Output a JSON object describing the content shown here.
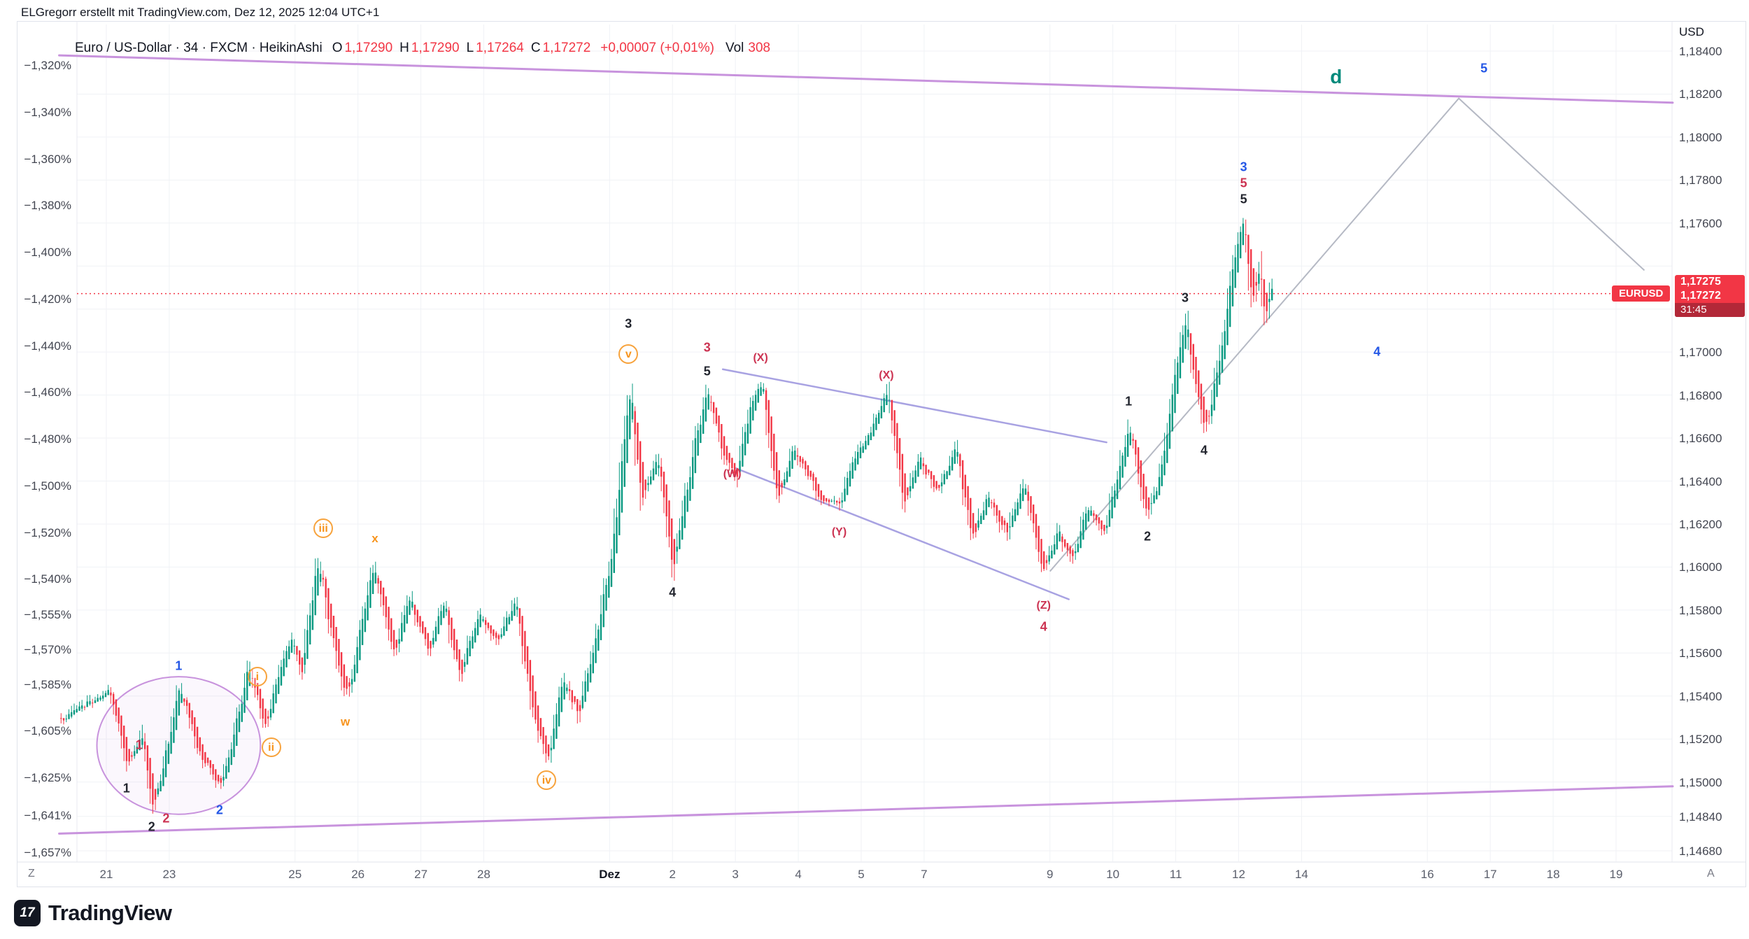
{
  "page": {
    "attribution": "ELGregorr erstellt mit TradingView.com, Dez 12, 2025 12:04 UTC+1",
    "logo_glyph": "17",
    "logo_text": "TradingView"
  },
  "symbol_bar": {
    "title": "Euro / US-Dollar · 34 · FXCM · HeikinAshi",
    "ohlc": [
      {
        "label": "O",
        "value": "1,17290"
      },
      {
        "label": "H",
        "value": "1,17290"
      },
      {
        "label": "L",
        "value": "1,17264"
      },
      {
        "label": "C",
        "value": "1,17272"
      }
    ],
    "change": "+0,00007 (+0,01%)",
    "vol_label": "Vol",
    "vol_value": "308"
  },
  "price_line": {
    "symbol": "EURUSD",
    "ask": "1,17275",
    "last": "1,17272",
    "countdown": "31:45",
    "value": 1.17272
  },
  "axes": {
    "currency": "USD",
    "corner_left": "Z",
    "corner_right": "A",
    "left_ticks": [
      {
        "label": "−1,320%",
        "v": -1.32
      },
      {
        "label": "−1,340%",
        "v": -1.34
      },
      {
        "label": "−1,360%",
        "v": -1.36
      },
      {
        "label": "−1,380%",
        "v": -1.38
      },
      {
        "label": "−1,400%",
        "v": -1.4
      },
      {
        "label": "−1,420%",
        "v": -1.42
      },
      {
        "label": "−1,440%",
        "v": -1.44
      },
      {
        "label": "−1,460%",
        "v": -1.46
      },
      {
        "label": "−1,480%",
        "v": -1.48
      },
      {
        "label": "−1,500%",
        "v": -1.5
      },
      {
        "label": "−1,520%",
        "v": -1.52
      },
      {
        "label": "−1,540%",
        "v": -1.54
      },
      {
        "label": "−1,555%",
        "v": -1.555
      },
      {
        "label": "−1,570%",
        "v": -1.57
      },
      {
        "label": "−1,585%",
        "v": -1.585
      },
      {
        "label": "−1,605%",
        "v": -1.605
      },
      {
        "label": "−1,625%",
        "v": -1.625
      },
      {
        "label": "−1,641%",
        "v": -1.641
      },
      {
        "label": "−1,657%",
        "v": -1.657
      }
    ],
    "right_ticks": [
      {
        "label": "1,18400",
        "v": 1.184
      },
      {
        "label": "1,18200",
        "v": 1.182
      },
      {
        "label": "1,18000",
        "v": 1.18
      },
      {
        "label": "1,17800",
        "v": 1.178
      },
      {
        "label": "1,17600",
        "v": 1.176
      },
      {
        "label": "1,17400",
        "v": 1.174
      },
      {
        "label": "1,17200",
        "v": 1.172
      },
      {
        "label": "1,17000",
        "v": 1.17
      },
      {
        "label": "1,16800",
        "v": 1.168
      },
      {
        "label": "1,16600",
        "v": 1.166
      },
      {
        "label": "1,16400",
        "v": 1.164
      },
      {
        "label": "1,16200",
        "v": 1.162
      },
      {
        "label": "1,16000",
        "v": 1.16
      },
      {
        "label": "1,15800",
        "v": 1.158
      },
      {
        "label": "1,15600",
        "v": 1.156
      },
      {
        "label": "1,15400",
        "v": 1.154
      },
      {
        "label": "1,15200",
        "v": 1.152
      },
      {
        "label": "1,15000",
        "v": 1.15
      },
      {
        "label": "1,14840",
        "v": 1.1484
      },
      {
        "label": "1,14680",
        "v": 1.1468
      }
    ],
    "time_ticks": [
      {
        "label": "21",
        "slot": 0
      },
      {
        "label": "23",
        "slot": 1
      },
      {
        "label": "25",
        "slot": 3
      },
      {
        "label": "26",
        "slot": 4
      },
      {
        "label": "27",
        "slot": 5
      },
      {
        "label": "28",
        "slot": 6
      },
      {
        "label": "Dez",
        "slot": 8,
        "major": true
      },
      {
        "label": "2",
        "slot": 9
      },
      {
        "label": "3",
        "slot": 10
      },
      {
        "label": "4",
        "slot": 11
      },
      {
        "label": "5",
        "slot": 12
      },
      {
        "label": "7",
        "slot": 13
      },
      {
        "label": "9",
        "slot": 15
      },
      {
        "label": "10",
        "slot": 16
      },
      {
        "label": "11",
        "slot": 17
      },
      {
        "label": "12",
        "slot": 18
      },
      {
        "label": "14",
        "slot": 19
      },
      {
        "label": "16",
        "slot": 21
      },
      {
        "label": "17",
        "slot": 22
      },
      {
        "label": "18",
        "slot": 23
      },
      {
        "label": "19",
        "slot": 24
      }
    ]
  },
  "chart_data": {
    "type": "candlestick",
    "style": "HeikinAshi",
    "symbol": "EURUSD",
    "timeframe": "34",
    "exchange": "FXCM",
    "current": {
      "open": 1.1729,
      "high": 1.1729,
      "low": 1.17264,
      "close": 1.17272,
      "volume": 308
    },
    "ylim_right": [
      1.1468,
      1.184
    ],
    "ylim_left_percent": [
      -1.657,
      -1.32
    ],
    "x_categories": [
      "21",
      "23",
      "25",
      "26",
      "27",
      "28",
      "Dez",
      "2",
      "3",
      "4",
      "5",
      "7",
      "9",
      "10",
      "11",
      "12",
      "14",
      "16",
      "17",
      "18",
      "19"
    ],
    "bars_per_day": 24,
    "seed": 1234,
    "colors": {
      "up": "#089981",
      "down": "#f23645",
      "price_line": "#f23645",
      "trendline": "#c893dd",
      "wedge": "#a8a2e2",
      "projection": "#b5b9c4"
    },
    "price_path_anchors": [
      [
        -0.72,
        1.153
      ],
      [
        0.05,
        1.1542
      ],
      [
        0.32,
        1.1506
      ],
      [
        0.55,
        1.1524
      ],
      [
        0.72,
        1.1488
      ],
      [
        0.9,
        1.1508
      ],
      [
        1.15,
        1.1545
      ],
      [
        1.45,
        1.1515
      ],
      [
        1.8,
        1.1496
      ],
      [
        2.1,
        1.1532
      ],
      [
        2.25,
        1.1555
      ],
      [
        2.5,
        1.1525
      ],
      [
        2.9,
        1.1568
      ],
      [
        3.1,
        1.1552
      ],
      [
        3.35,
        1.1605
      ],
      [
        3.55,
        1.1572
      ],
      [
        3.8,
        1.1538
      ],
      [
        4.0,
        1.157
      ],
      [
        4.25,
        1.1602
      ],
      [
        4.55,
        1.156
      ],
      [
        4.8,
        1.1585
      ],
      [
        5.1,
        1.1562
      ],
      [
        5.35,
        1.1585
      ],
      [
        5.6,
        1.1548
      ],
      [
        5.9,
        1.158
      ],
      [
        6.2,
        1.1565
      ],
      [
        6.5,
        1.1585
      ],
      [
        6.8,
        1.1528
      ],
      [
        7.0,
        1.1512
      ],
      [
        7.25,
        1.1548
      ],
      [
        7.5,
        1.1532
      ],
      [
        7.8,
        1.1572
      ],
      [
        8.05,
        1.1608
      ],
      [
        8.3,
        1.1688
      ],
      [
        8.5,
        1.1628
      ],
      [
        8.75,
        1.1652
      ],
      [
        9.0,
        1.1598
      ],
      [
        9.25,
        1.1645
      ],
      [
        9.55,
        1.1682
      ],
      [
        9.8,
        1.1652
      ],
      [
        10.0,
        1.1642
      ],
      [
        10.2,
        1.1672
      ],
      [
        10.4,
        1.1688
      ],
      [
        10.65,
        1.1632
      ],
      [
        10.9,
        1.1655
      ],
      [
        11.15,
        1.1642
      ],
      [
        11.4,
        1.163
      ],
      [
        11.65,
        1.163
      ],
      [
        11.9,
        1.1652
      ],
      [
        12.15,
        1.1664
      ],
      [
        12.4,
        1.168
      ],
      [
        12.65,
        1.1628
      ],
      [
        12.9,
        1.165
      ],
      [
        13.2,
        1.1635
      ],
      [
        13.5,
        1.1656
      ],
      [
        13.75,
        1.1612
      ],
      [
        14.0,
        1.1634
      ],
      [
        14.3,
        1.1615
      ],
      [
        14.55,
        1.164
      ],
      [
        14.9,
        1.1596
      ],
      [
        15.1,
        1.1618
      ],
      [
        15.35,
        1.1602
      ],
      [
        15.6,
        1.1628
      ],
      [
        15.85,
        1.1615
      ],
      [
        16.05,
        1.1642
      ],
      [
        16.25,
        1.1668
      ],
      [
        16.4,
        1.1641
      ],
      [
        16.55,
        1.1623
      ],
      [
        16.8,
        1.1652
      ],
      [
        17.0,
        1.1692
      ],
      [
        17.15,
        1.1716
      ],
      [
        17.3,
        1.1682
      ],
      [
        17.45,
        1.1663
      ],
      [
        17.7,
        1.1702
      ],
      [
        17.85,
        1.1732
      ],
      [
        18.0,
        1.1754
      ],
      [
        18.08,
        1.1762
      ],
      [
        18.2,
        1.1722
      ],
      [
        18.32,
        1.1741
      ],
      [
        18.42,
        1.1714
      ],
      [
        18.5,
        1.1731
      ],
      [
        18.55,
        1.17272
      ]
    ],
    "annotations": [
      {
        "text": "1",
        "slot": 0.32,
        "price": 1.1497,
        "cls": "black"
      },
      {
        "text": "2",
        "slot": 0.72,
        "price": 1.1479,
        "cls": "black"
      },
      {
        "text": "1",
        "slot": 0.52,
        "price": 1.1517,
        "cls": "red"
      },
      {
        "text": "2",
        "slot": 0.95,
        "price": 1.1483,
        "cls": "red"
      },
      {
        "text": "1",
        "slot": 1.15,
        "price": 1.1554,
        "cls": "blue"
      },
      {
        "text": "2",
        "slot": 1.8,
        "price": 1.1487,
        "cls": "blue"
      },
      {
        "text": "i",
        "slot": 2.4,
        "price": 1.1549,
        "cls": "circle"
      },
      {
        "text": "ii",
        "slot": 2.62,
        "price": 1.1516,
        "cls": "circle"
      },
      {
        "text": "iii",
        "slot": 3.45,
        "price": 1.1618,
        "cls": "circle"
      },
      {
        "text": "w",
        "slot": 3.8,
        "price": 1.1528,
        "cls": "orange"
      },
      {
        "text": "x",
        "slot": 4.27,
        "price": 1.1613,
        "cls": "orange"
      },
      {
        "text": "iv",
        "slot": 7.0,
        "price": 1.1501,
        "cls": "circle"
      },
      {
        "text": "v",
        "slot": 8.3,
        "price": 1.1699,
        "cls": "circle"
      },
      {
        "text": "3",
        "slot": 8.3,
        "price": 1.1713,
        "cls": "black"
      },
      {
        "text": "4",
        "slot": 9.0,
        "price": 1.1588,
        "cls": "black"
      },
      {
        "text": "5",
        "slot": 9.55,
        "price": 1.1691,
        "cls": "black"
      },
      {
        "text": "3",
        "slot": 9.55,
        "price": 1.1702,
        "cls": "red"
      },
      {
        "text": "(W)",
        "slot": 9.95,
        "price": 1.1643,
        "cls": "redp"
      },
      {
        "text": "(X)",
        "slot": 10.4,
        "price": 1.1697,
        "cls": "redp"
      },
      {
        "text": "(Y)",
        "slot": 11.65,
        "price": 1.1616,
        "cls": "redp"
      },
      {
        "text": "(X)",
        "slot": 12.4,
        "price": 1.1689,
        "cls": "redp"
      },
      {
        "text": "(Z)",
        "slot": 14.9,
        "price": 1.1582,
        "cls": "redp"
      },
      {
        "text": "4",
        "slot": 14.9,
        "price": 1.1572,
        "cls": "red"
      },
      {
        "text": "1",
        "slot": 16.25,
        "price": 1.1677,
        "cls": "black"
      },
      {
        "text": "2",
        "slot": 16.55,
        "price": 1.1614,
        "cls": "black"
      },
      {
        "text": "3",
        "slot": 17.15,
        "price": 1.1725,
        "cls": "black"
      },
      {
        "text": "4",
        "slot": 17.45,
        "price": 1.1654,
        "cls": "black"
      },
      {
        "text": "5",
        "slot": 18.08,
        "price": 1.1771,
        "cls": "black"
      },
      {
        "text": "5",
        "slot": 18.08,
        "price": 1.17785,
        "cls": "red"
      },
      {
        "text": "3",
        "slot": 18.08,
        "price": 1.1786,
        "cls": "blue"
      },
      {
        "text": "4",
        "slot": 20.2,
        "price": 1.17,
        "cls": "blue"
      },
      {
        "text": "5",
        "slot": 21.9,
        "price": 1.1832,
        "cls": "blue"
      },
      {
        "text": "d",
        "slot": 19.55,
        "price": 1.1828,
        "cls": "teal"
      }
    ],
    "drawings": {
      "upper_trendline": {
        "from": [
          -0.75,
          1.1838
        ],
        "to": [
          24.9,
          1.1816
        ]
      },
      "lower_trendline": {
        "from": [
          -0.75,
          1.1476
        ],
        "to": [
          24.9,
          1.1498
        ]
      },
      "wedge_upper": {
        "from": [
          9.8,
          1.1692
        ],
        "to": [
          15.9,
          1.1658
        ]
      },
      "wedge_lower": {
        "from": [
          10.0,
          1.1646
        ],
        "to": [
          15.3,
          1.1585
        ]
      },
      "projection": {
        "points": [
          [
            15.0,
            1.1598
          ],
          [
            21.5,
            1.1818
          ],
          [
            24.45,
            1.1738
          ]
        ]
      },
      "ellipse": {
        "center": [
          1.15,
          1.1517
        ],
        "rx_slots": 1.3,
        "ry_price": 0.0032
      }
    }
  }
}
